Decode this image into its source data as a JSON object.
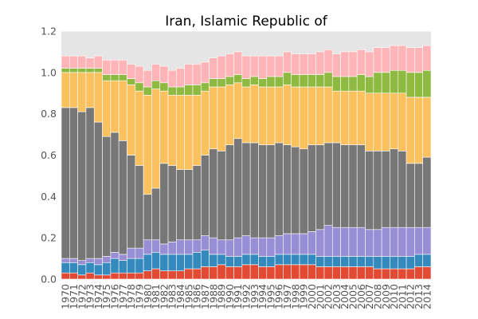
{
  "chart_data": {
    "type": "bar",
    "stacked": true,
    "title": "Iran, Islamic Republic of",
    "xlabel": "",
    "ylabel": "",
    "ylim": [
      0,
      1.2
    ],
    "yticks": [
      "0.0",
      "0.2",
      "0.4",
      "0.6",
      "0.8",
      "1.0",
      "1.2"
    ],
    "grid": true,
    "background": "#e5e5e5",
    "categories": [
      "1970",
      "1971",
      "1972",
      "1973",
      "1974",
      "1975",
      "1976",
      "1977",
      "1978",
      "1979",
      "1980",
      "1981",
      "1982",
      "1983",
      "1984",
      "1985",
      "1986",
      "1987",
      "1988",
      "1989",
      "1990",
      "1991",
      "1992",
      "1993",
      "1994",
      "1995",
      "1996",
      "1997",
      "1998",
      "1999",
      "2000",
      "2001",
      "2002",
      "2003",
      "2004",
      "2005",
      "2006",
      "2007",
      "2008",
      "2009",
      "2010",
      "2011",
      "2012",
      "2013",
      "2014"
    ],
    "series": [
      {
        "color": "#e24a33",
        "values": [
          0.03,
          0.03,
          0.02,
          0.03,
          0.02,
          0.02,
          0.03,
          0.03,
          0.03,
          0.03,
          0.04,
          0.05,
          0.04,
          0.04,
          0.04,
          0.05,
          0.05,
          0.06,
          0.06,
          0.07,
          0.06,
          0.06,
          0.07,
          0.07,
          0.06,
          0.06,
          0.07,
          0.07,
          0.07,
          0.07,
          0.07,
          0.06,
          0.06,
          0.06,
          0.06,
          0.06,
          0.06,
          0.06,
          0.05,
          0.05,
          0.05,
          0.05,
          0.05,
          0.06,
          0.06
        ]
      },
      {
        "color": "#348abd",
        "values": [
          0.05,
          0.05,
          0.05,
          0.05,
          0.05,
          0.06,
          0.07,
          0.06,
          0.07,
          0.07,
          0.08,
          0.08,
          0.08,
          0.08,
          0.08,
          0.07,
          0.08,
          0.08,
          0.06,
          0.05,
          0.05,
          0.05,
          0.05,
          0.05,
          0.05,
          0.05,
          0.05,
          0.05,
          0.05,
          0.05,
          0.05,
          0.05,
          0.05,
          0.05,
          0.05,
          0.05,
          0.05,
          0.05,
          0.06,
          0.06,
          0.06,
          0.06,
          0.06,
          0.06,
          0.06
        ]
      },
      {
        "color": "#988ed5",
        "values": [
          0.02,
          0.02,
          0.02,
          0.02,
          0.03,
          0.03,
          0.03,
          0.03,
          0.05,
          0.05,
          0.07,
          0.06,
          0.05,
          0.06,
          0.07,
          0.07,
          0.06,
          0.07,
          0.08,
          0.07,
          0.08,
          0.09,
          0.09,
          0.08,
          0.09,
          0.09,
          0.09,
          0.1,
          0.1,
          0.1,
          0.11,
          0.13,
          0.15,
          0.14,
          0.14,
          0.14,
          0.14,
          0.13,
          0.13,
          0.14,
          0.14,
          0.14,
          0.14,
          0.13,
          0.13
        ]
      },
      {
        "color": "#777777",
        "values": [
          0.73,
          0.73,
          0.72,
          0.73,
          0.66,
          0.58,
          0.58,
          0.55,
          0.45,
          0.4,
          0.22,
          0.25,
          0.39,
          0.37,
          0.34,
          0.34,
          0.36,
          0.39,
          0.43,
          0.43,
          0.46,
          0.48,
          0.45,
          0.46,
          0.45,
          0.45,
          0.45,
          0.43,
          0.42,
          0.41,
          0.42,
          0.41,
          0.4,
          0.41,
          0.4,
          0.4,
          0.4,
          0.38,
          0.38,
          0.37,
          0.38,
          0.37,
          0.31,
          0.31,
          0.34
        ]
      },
      {
        "color": "#fbc15e",
        "values": [
          0.17,
          0.17,
          0.19,
          0.17,
          0.24,
          0.27,
          0.25,
          0.29,
          0.34,
          0.36,
          0.48,
          0.48,
          0.35,
          0.34,
          0.36,
          0.36,
          0.34,
          0.31,
          0.3,
          0.31,
          0.29,
          0.27,
          0.27,
          0.28,
          0.28,
          0.28,
          0.27,
          0.29,
          0.29,
          0.3,
          0.28,
          0.28,
          0.27,
          0.25,
          0.26,
          0.26,
          0.26,
          0.28,
          0.28,
          0.28,
          0.27,
          0.28,
          0.32,
          0.32,
          0.29
        ]
      },
      {
        "color": "#8eba42",
        "values": [
          0.02,
          0.02,
          0.02,
          0.02,
          0.02,
          0.03,
          0.03,
          0.03,
          0.03,
          0.04,
          0.04,
          0.04,
          0.04,
          0.04,
          0.04,
          0.05,
          0.05,
          0.04,
          0.04,
          0.04,
          0.04,
          0.04,
          0.04,
          0.04,
          0.04,
          0.05,
          0.05,
          0.06,
          0.06,
          0.06,
          0.06,
          0.06,
          0.07,
          0.07,
          0.07,
          0.07,
          0.08,
          0.08,
          0.1,
          0.1,
          0.11,
          0.11,
          0.12,
          0.12,
          0.13
        ]
      },
      {
        "color": "#ffb5b8",
        "values": [
          0.06,
          0.06,
          0.06,
          0.05,
          0.06,
          0.07,
          0.07,
          0.07,
          0.07,
          0.08,
          0.08,
          0.08,
          0.08,
          0.08,
          0.09,
          0.1,
          0.1,
          0.1,
          0.1,
          0.11,
          0.11,
          0.11,
          0.11,
          0.1,
          0.11,
          0.1,
          0.1,
          0.1,
          0.1,
          0.1,
          0.1,
          0.11,
          0.11,
          0.11,
          0.12,
          0.12,
          0.12,
          0.12,
          0.12,
          0.12,
          0.12,
          0.12,
          0.12,
          0.12,
          0.12
        ]
      }
    ]
  }
}
